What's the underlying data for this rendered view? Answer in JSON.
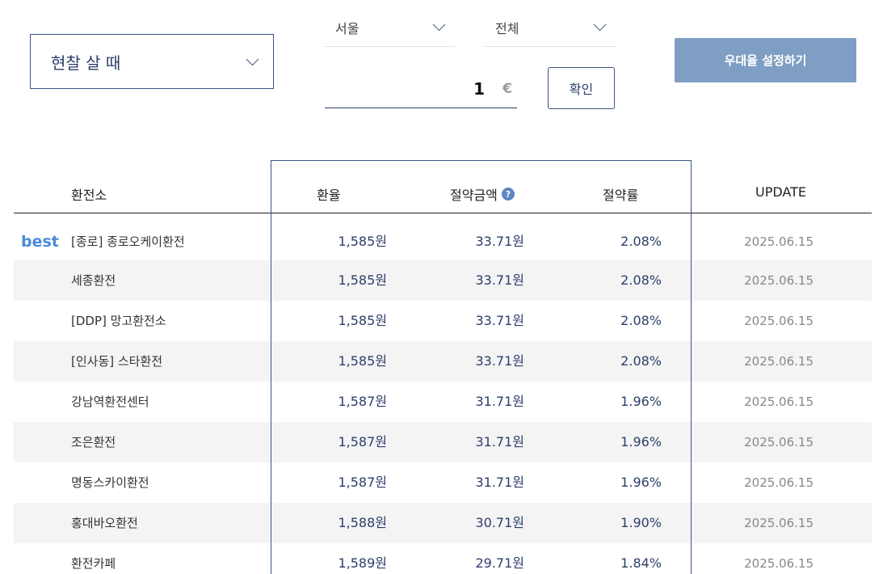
{
  "controls": {
    "trade_type": "현찰 살 때",
    "region": "서울",
    "district": "전체",
    "amount": "1",
    "currency_symbol": "€",
    "confirm_label": "확인",
    "preference_label": "우대율 설정하기"
  },
  "table": {
    "headers": {
      "name": "환전소",
      "rate": "환율",
      "saving": "절약금액",
      "saving_rate": "절약률",
      "update": "UPDATE"
    },
    "help_glyph": "?",
    "rows": [
      {
        "badge": "best",
        "name": "[종로] 종로오케이환전",
        "rate": "1,585원",
        "saving": "33.71원",
        "saving_rate": "2.08%",
        "update": "2025.06.15"
      },
      {
        "badge": "",
        "name": "세종환전",
        "rate": "1,585원",
        "saving": "33.71원",
        "saving_rate": "2.08%",
        "update": "2025.06.15"
      },
      {
        "badge": "",
        "name": "[DDP] 망고환전소",
        "rate": "1,585원",
        "saving": "33.71원",
        "saving_rate": "2.08%",
        "update": "2025.06.15"
      },
      {
        "badge": "",
        "name": "[인사동] 스타환전",
        "rate": "1,585원",
        "saving": "33.71원",
        "saving_rate": "2.08%",
        "update": "2025.06.15"
      },
      {
        "badge": "",
        "name": "강남역환전센터",
        "rate": "1,587원",
        "saving": "31.71원",
        "saving_rate": "1.96%",
        "update": "2025.06.15"
      },
      {
        "badge": "",
        "name": "조은환전",
        "rate": "1,587원",
        "saving": "31.71원",
        "saving_rate": "1.96%",
        "update": "2025.06.15"
      },
      {
        "badge": "",
        "name": "명동스카이환전",
        "rate": "1,587원",
        "saving": "31.71원",
        "saving_rate": "1.96%",
        "update": "2025.06.15"
      },
      {
        "badge": "",
        "name": "홍대바오환전",
        "rate": "1,588원",
        "saving": "30.71원",
        "saving_rate": "1.90%",
        "update": "2025.06.15"
      },
      {
        "badge": "",
        "name": "환전카페",
        "rate": "1,589원",
        "saving": "29.71원",
        "saving_rate": "1.84%",
        "update": "2025.06.15"
      }
    ]
  },
  "colors": {
    "navy": "#2c3e6b",
    "border": "#3b5480",
    "button_fill": "#7f9ec3",
    "best_badge": "#4a8ad8",
    "row_alt": "#f4f4f4"
  },
  "icons": {
    "dropdown": "chevron-down-icon",
    "help": "question-circle-icon"
  }
}
